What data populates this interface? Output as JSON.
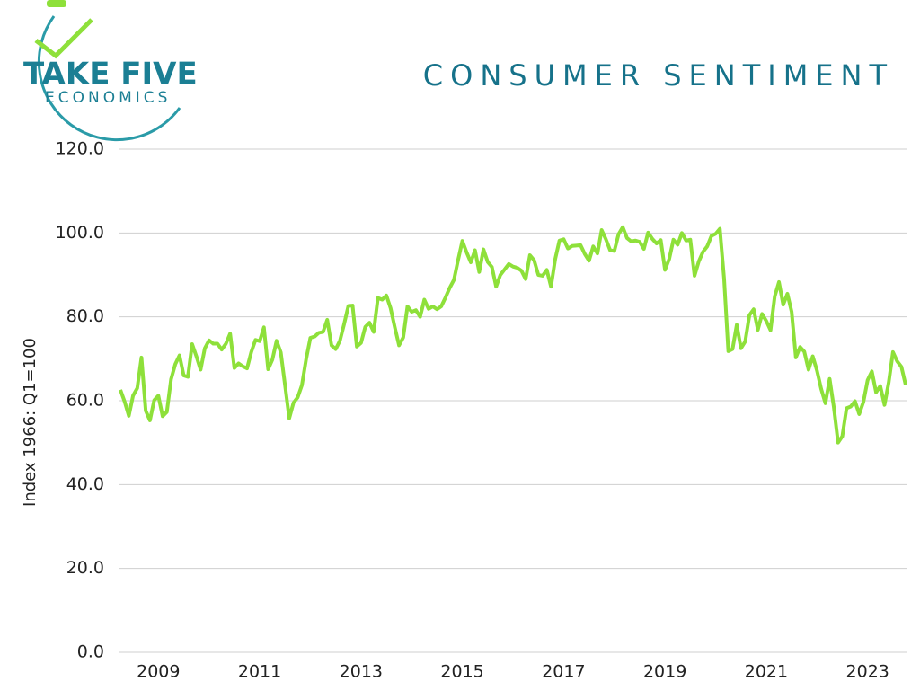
{
  "logo": {
    "top": "TAKE FIVE",
    "bottom": "ECONOMICS"
  },
  "chart_data": {
    "type": "line",
    "title": "CONSUMER SENTIMENT",
    "y_label": "Index 1966: Q1=100",
    "color": "#8ee03a",
    "grid": true,
    "ylim": [
      0,
      120
    ],
    "yticks": [
      {
        "value": 0,
        "label": "0.0"
      },
      {
        "value": 20,
        "label": "20.0"
      },
      {
        "value": 40,
        "label": "40.0"
      },
      {
        "value": 60,
        "label": "60.0"
      },
      {
        "value": 80,
        "label": "80.0"
      },
      {
        "value": 100,
        "label": "100.0"
      },
      {
        "value": 120,
        "label": "120.0"
      }
    ],
    "categories": [
      null,
      null,
      null,
      null,
      null,
      null,
      null,
      null,
      null,
      "2009",
      null,
      null,
      null,
      null,
      null,
      null,
      null,
      null,
      null,
      null,
      null,
      null,
      null,
      null,
      null,
      null,
      null,
      null,
      null,
      null,
      null,
      null,
      null,
      "2011",
      null,
      null,
      null,
      null,
      null,
      null,
      null,
      null,
      null,
      null,
      null,
      null,
      null,
      null,
      null,
      null,
      null,
      null,
      null,
      null,
      null,
      null,
      null,
      "2013",
      null,
      null,
      null,
      null,
      null,
      null,
      null,
      null,
      null,
      null,
      null,
      null,
      null,
      null,
      null,
      null,
      null,
      null,
      null,
      null,
      null,
      null,
      null,
      "2015",
      null,
      null,
      null,
      null,
      null,
      null,
      null,
      null,
      null,
      null,
      null,
      null,
      null,
      null,
      null,
      null,
      null,
      null,
      null,
      null,
      null,
      null,
      null,
      "2017",
      null,
      null,
      null,
      null,
      null,
      null,
      null,
      null,
      null,
      null,
      null,
      null,
      null,
      null,
      null,
      null,
      null,
      null,
      null,
      null,
      null,
      null,
      null,
      "2019",
      null,
      null,
      null,
      null,
      null,
      null,
      null,
      null,
      null,
      null,
      null,
      null,
      null,
      null,
      null,
      null,
      null,
      null,
      null,
      null,
      null,
      null,
      null,
      "2021",
      null,
      null,
      null,
      null,
      null,
      null,
      null,
      null,
      null,
      null,
      null,
      null,
      null,
      null,
      null,
      null,
      null,
      null,
      null,
      null,
      null,
      null,
      null,
      "2023",
      null,
      null,
      null,
      null,
      null,
      null,
      null,
      null,
      null
    ],
    "values": [
      62.6,
      59.8,
      56.4,
      61.2,
      63.0,
      70.3,
      57.6,
      55.3,
      60.1,
      61.2,
      56.3,
      57.3,
      65.1,
      68.7,
      70.8,
      66.0,
      65.7,
      73.5,
      70.6,
      67.4,
      72.5,
      74.4,
      73.6,
      73.6,
      72.2,
      73.6,
      76.0,
      67.8,
      68.9,
      68.2,
      67.7,
      71.6,
      74.5,
      74.2,
      77.5,
      67.5,
      69.8,
      74.3,
      71.5,
      63.7,
      55.8,
      59.5,
      60.8,
      63.7,
      69.9,
      75.0,
      75.3,
      76.2,
      76.4,
      79.3,
      73.2,
      72.3,
      74.3,
      78.3,
      82.6,
      82.7,
      72.9,
      73.8,
      77.6,
      78.6,
      76.4,
      84.5,
      84.1,
      85.1,
      82.1,
      77.5,
      73.2,
      75.1,
      82.5,
      81.2,
      81.6,
      80.0,
      84.1,
      81.9,
      82.5,
      81.8,
      82.5,
      84.6,
      86.9,
      88.8,
      93.6,
      98.1,
      95.4,
      93.0,
      95.9,
      90.7,
      96.1,
      93.1,
      91.9,
      87.2,
      90.0,
      91.3,
      92.6,
      92.0,
      91.7,
      91.0,
      89.0,
      94.7,
      93.5,
      90.0,
      89.8,
      91.2,
      87.2,
      93.8,
      98.2,
      98.5,
      96.3,
      96.9,
      97.0,
      97.1,
      95.0,
      93.4,
      96.8,
      95.1,
      100.7,
      98.5,
      95.9,
      95.7,
      99.7,
      101.4,
      98.8,
      98.0,
      98.2,
      97.9,
      96.2,
      100.1,
      98.6,
      97.5,
      98.3,
      91.2,
      93.8,
      98.4,
      97.2,
      100.0,
      98.2,
      98.4,
      89.8,
      93.2,
      95.5,
      96.8,
      99.3,
      99.8,
      101.0,
      89.1,
      71.8,
      72.3,
      78.1,
      72.5,
      74.1,
      80.4,
      81.8,
      76.9,
      80.7,
      79.0,
      76.8,
      84.9,
      88.3,
      82.9,
      85.5,
      81.2,
      70.3,
      72.8,
      71.7,
      67.4,
      70.6,
      67.2,
      62.8,
      59.4,
      65.2,
      58.4,
      50.0,
      51.5,
      58.2,
      58.6,
      59.9,
      56.8,
      59.7,
      64.9,
      67.0,
      62.0,
      63.5,
      59.0,
      64.4,
      71.6,
      69.4,
      68.1,
      63.8
    ]
  }
}
